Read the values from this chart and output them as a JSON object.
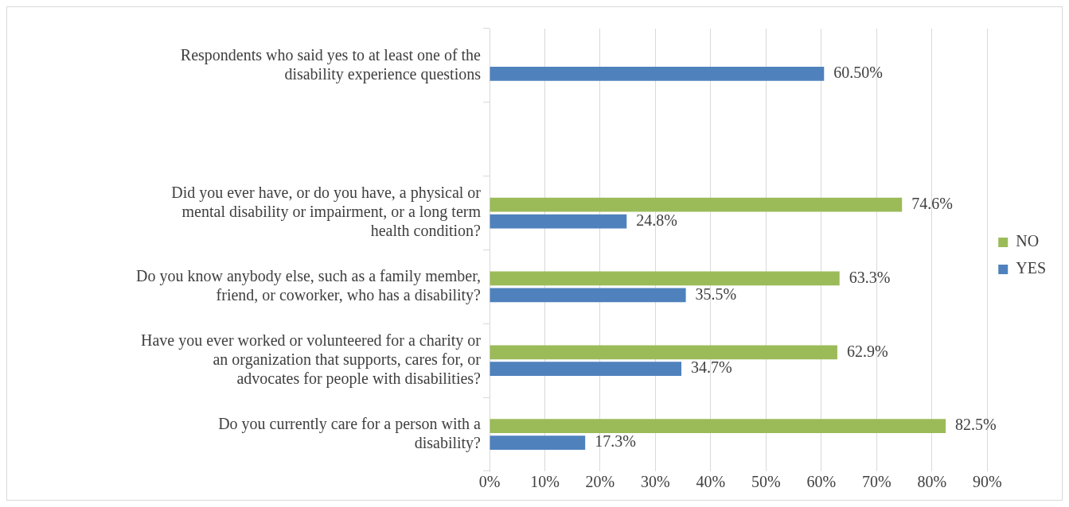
{
  "chart_data": {
    "type": "bar",
    "orientation": "horizontal",
    "categories": [
      "Respondents who said yes to at least one of the disability experience questions",
      null,
      "Did you ever have, or do you have, a physical or mental disability or impairment, or a long term health condition?",
      "Do you know anybody else, such as a family member, friend, or coworker, who has a disability?",
      "Have you ever worked or volunteered for a charity or an organization that supports, cares for, or advocates for people with disabilities?",
      "Do you currently care for a person with a disability?"
    ],
    "series": [
      {
        "name": "NO",
        "color": "#9bbb59",
        "values": [
          null,
          null,
          74.6,
          63.3,
          62.9,
          82.5
        ],
        "value_labels": [
          null,
          null,
          "74.6%",
          "63.3%",
          "62.9%",
          "82.5%"
        ]
      },
      {
        "name": "YES",
        "color": "#4f81bd",
        "values": [
          60.5,
          null,
          24.8,
          35.5,
          34.7,
          17.3
        ],
        "value_labels": [
          "60.50%",
          null,
          "24.8%",
          "35.5%",
          "34.7%",
          "17.3%"
        ]
      }
    ],
    "xlim": [
      0,
      90
    ],
    "xticks": [
      {
        "value": 0,
        "label": "0%"
      },
      {
        "value": 10,
        "label": "10%"
      },
      {
        "value": 20,
        "label": "20%"
      },
      {
        "value": 30,
        "label": "30%"
      },
      {
        "value": 40,
        "label": "40%"
      },
      {
        "value": 50,
        "label": "50%"
      },
      {
        "value": 60,
        "label": "60%"
      },
      {
        "value": 70,
        "label": "70%"
      },
      {
        "value": 80,
        "label": "80%"
      },
      {
        "value": 90,
        "label": "90%"
      }
    ],
    "grid": "x",
    "legend": "right"
  }
}
